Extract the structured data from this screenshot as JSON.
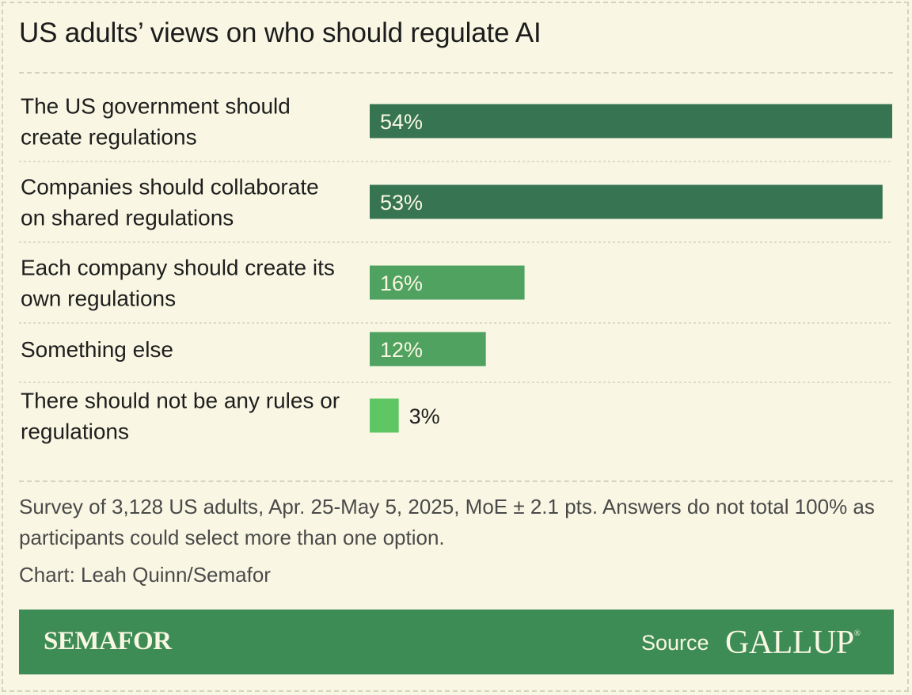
{
  "title": "US adults’ views on who should regulate AI",
  "note": "Survey of 3,128 US adults, Apr. 25-May 5, 2025, MoE ± 2.1 pts. Answers do not total 100% as participants could select more than one option.",
  "credit": "Chart: Leah Quinn/Semafor",
  "footer": {
    "brand": "SEMAFOR",
    "source_label": "Source",
    "source_name": "GALLUP",
    "source_mark": "®"
  },
  "colors": {
    "background": "#f9f7e3",
    "bar_dark": "#367452",
    "bar_mid": "#4fa25f",
    "bar_light": "#5ec764",
    "footer": "#3e8c55"
  },
  "chart_data": {
    "type": "bar",
    "orientation": "horizontal",
    "categories": [
      [
        "The US government should",
        "create regulations"
      ],
      [
        "Companies should collaborate",
        "on shared regulations"
      ],
      [
        "Each company should create its",
        "own regulations"
      ],
      [
        "Something else"
      ],
      [
        "There should not be any rules or",
        "regulations"
      ]
    ],
    "values": [
      54,
      53,
      16,
      12,
      3
    ],
    "value_labels": [
      "54%",
      "53%",
      "16%",
      "12%",
      "3%"
    ],
    "bar_colors": [
      "#367452",
      "#367452",
      "#4fa25f",
      "#4fa25f",
      "#5ec764"
    ],
    "xlim": [
      0,
      54
    ],
    "grid": false,
    "legend": "none"
  }
}
